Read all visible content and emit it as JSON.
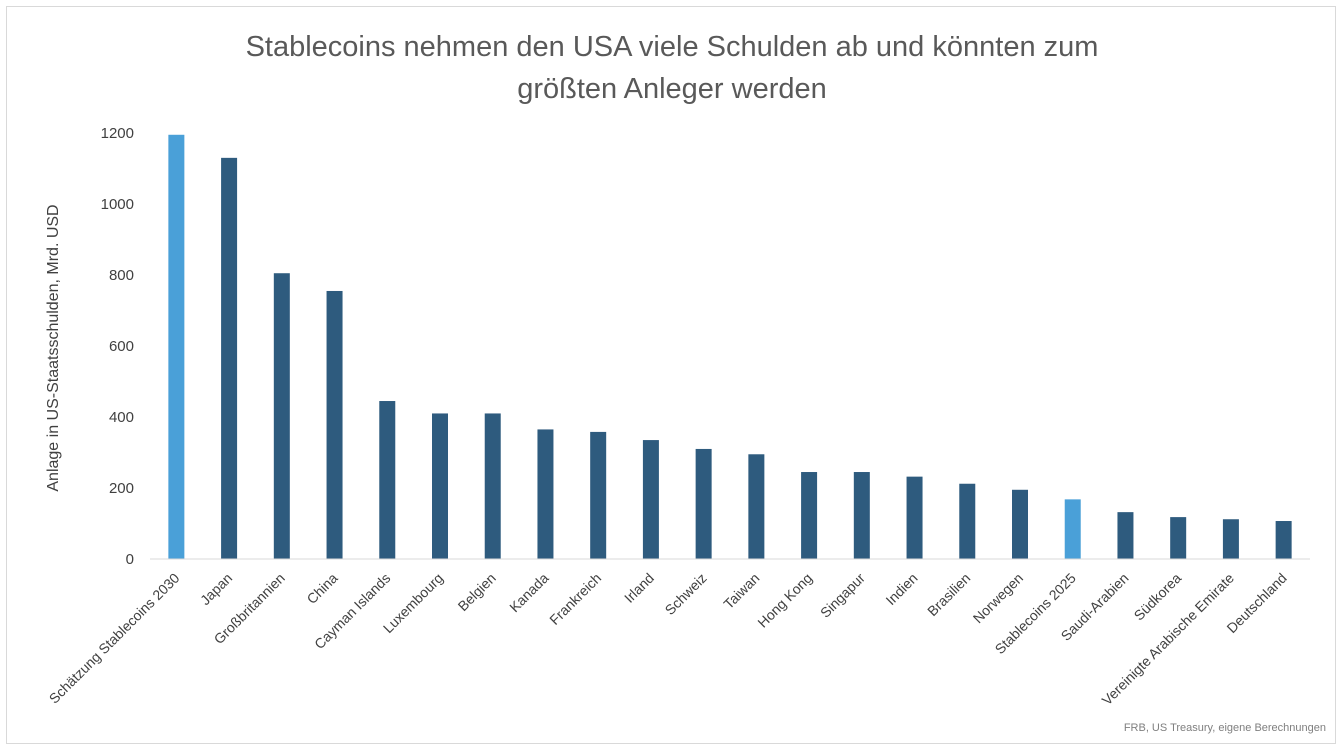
{
  "chart_data": {
    "type": "bar",
    "title_lines": [
      "Stablecoins nehmen den USA viele Schulden ab und könnten zum",
      "größten Anleger werden"
    ],
    "xlabel": "",
    "ylabel": "Anlage in US-Staatsschulden, Mrd. USD",
    "ylim": [
      0,
      1200
    ],
    "yticks": [
      0,
      200,
      400,
      600,
      800,
      1000,
      1200
    ],
    "grid": false,
    "source": "FRB, US Treasury, eigene Berechnungen",
    "colors": {
      "default": "#2e5b7e",
      "highlight": "#4aa0d8"
    },
    "categories": [
      "Schätzung Stablecoins 2030",
      "Japan",
      "Großbritannien",
      "China",
      "Cayman Islands",
      "Luxembourg",
      "Belgien",
      "Kanada",
      "Frankreich",
      "Irland",
      "Schweiz",
      "Taiwan",
      "Hong Kong",
      "Singapur",
      "Indien",
      "Brasilien",
      "Norwegen",
      "Stablecoins 2025",
      "Saudi-Arabien",
      "Südkorea",
      "Vereinigte Arabische Emirate",
      "Deutschland"
    ],
    "values": [
      1195,
      1130,
      805,
      755,
      445,
      410,
      410,
      365,
      358,
      335,
      310,
      295,
      245,
      245,
      232,
      212,
      195,
      168,
      132,
      118,
      112,
      107
    ],
    "highlight": [
      true,
      false,
      false,
      false,
      false,
      false,
      false,
      false,
      false,
      false,
      false,
      false,
      false,
      false,
      false,
      false,
      false,
      true,
      false,
      false,
      false,
      false
    ]
  }
}
